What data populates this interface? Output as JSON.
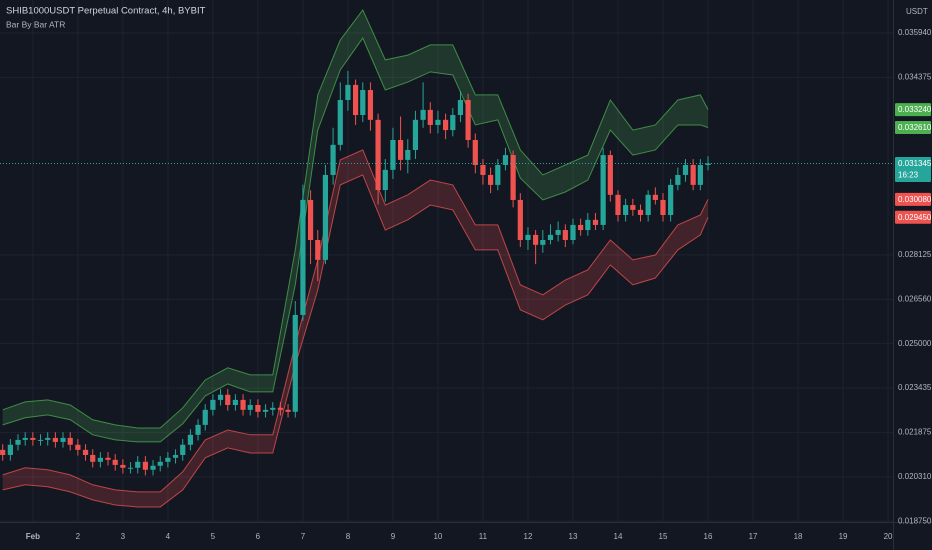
{
  "chart_data": {
    "type": "candlestick",
    "title": "SHIB1000USDT Perpetual Contract, 4h, BYBIT",
    "indicator": "Bar By Bar ATR",
    "currency": "USDT",
    "up_color": "#26a69a",
    "down_color": "#ef5350",
    "x": [
      0.33,
      0.5,
      0.67,
      0.83,
      1,
      1.17,
      1.33,
      1.5,
      1.67,
      1.83,
      2,
      2.17,
      2.33,
      2.5,
      2.67,
      2.83,
      3,
      3.17,
      3.33,
      3.5,
      3.67,
      3.83,
      4,
      4.17,
      4.33,
      4.5,
      4.67,
      4.83,
      5,
      5.17,
      5.33,
      5.5,
      5.67,
      5.83,
      6,
      6.17,
      6.33,
      6.5,
      6.67,
      6.83,
      7,
      7.17,
      7.33,
      7.5,
      7.67,
      7.83,
      8,
      8.17,
      8.33,
      8.5,
      8.67,
      8.83,
      9,
      9.17,
      9.33,
      9.5,
      9.67,
      9.83,
      10,
      10.17,
      10.33,
      10.5,
      10.67,
      10.83,
      11,
      11.17,
      11.33,
      11.5,
      11.67,
      11.83,
      12,
      12.17,
      12.33,
      12.5,
      12.67,
      12.83,
      13,
      13.17,
      13.33,
      13.5,
      13.67,
      13.83,
      14,
      14.17,
      14.33,
      14.5,
      14.67,
      14.83,
      15,
      15.17,
      15.33,
      15.5,
      15.67,
      15.83,
      16
    ],
    "open": [
      0.02126,
      0.02108,
      0.02144,
      0.02161,
      0.02168,
      0.02161,
      0.02161,
      0.02168,
      0.02154,
      0.02168,
      0.02144,
      0.02126,
      0.02108,
      0.02084,
      0.02098,
      0.02091,
      0.02073,
      0.02063,
      0.02063,
      0.02084,
      0.02056,
      0.0207,
      0.02084,
      0.02098,
      0.02108,
      0.02144,
      0.02179,
      0.02214,
      0.02267,
      0.02302,
      0.0232,
      0.02284,
      0.02302,
      0.02267,
      0.02284,
      0.0226,
      0.02267,
      0.02274,
      0.02267,
      0.0226,
      0.02601,
      0.03006,
      0.02865,
      0.02795,
      0.03094,
      0.032,
      0.03358,
      0.03411,
      0.03305,
      0.03393,
      0.03288,
      0.03041,
      0.03112,
      0.03217,
      0.03147,
      0.03182,
      0.03288,
      0.03323,
      0.0327,
      0.03288,
      0.03252,
      0.03305,
      0.03358,
      0.03217,
      0.03129,
      0.03094,
      0.03059,
      0.03129,
      0.03164,
      0.03006,
      0.02865,
      0.02883,
      0.02848,
      0.02865,
      0.02883,
      0.029,
      0.02865,
      0.02918,
      0.029,
      0.02936,
      0.02918,
      0.03164,
      0.03024,
      0.02953,
      0.02988,
      0.02971,
      0.02953,
      0.03024,
      0.03006,
      0.02953,
      0.03059,
      0.03094,
      0.03129,
      0.03059,
      0.03129
    ],
    "high": [
      0.02146,
      0.02164,
      0.02181,
      0.02188,
      0.02188,
      0.02181,
      0.02188,
      0.02188,
      0.02188,
      0.02188,
      0.02164,
      0.02146,
      0.02128,
      0.02118,
      0.02118,
      0.02111,
      0.02093,
      0.02083,
      0.02104,
      0.02104,
      0.0209,
      0.02104,
      0.02118,
      0.02128,
      0.02164,
      0.02199,
      0.02234,
      0.02287,
      0.02322,
      0.0234,
      0.0234,
      0.02322,
      0.02322,
      0.02304,
      0.02304,
      0.02287,
      0.02294,
      0.02294,
      0.02287,
      0.0265,
      0.0306,
      0.0304,
      0.029,
      0.0313,
      0.0326,
      0.0342,
      0.0346,
      0.0343,
      0.0342,
      0.0342,
      0.0331,
      0.0315,
      0.0326,
      0.033,
      0.0322,
      0.0332,
      0.0342,
      0.0335,
      0.0332,
      0.0331,
      0.0333,
      0.0339,
      0.0338,
      0.0324,
      0.0315,
      0.0312,
      0.0315,
      0.0319,
      0.0318,
      0.0303,
      0.0291,
      0.029,
      0.029,
      0.0292,
      0.0293,
      0.0292,
      0.0294,
      0.0294,
      0.0296,
      0.0296,
      0.0319,
      0.0318,
      0.0304,
      0.0301,
      0.0301,
      0.0299,
      0.0304,
      0.0305,
      0.0303,
      0.0308,
      0.0312,
      0.0315,
      0.0315,
      0.0315,
      0.0316
    ],
    "low": [
      0.02088,
      0.02088,
      0.02124,
      0.02141,
      0.02141,
      0.02141,
      0.02141,
      0.02134,
      0.02134,
      0.02124,
      0.02106,
      0.02088,
      0.02064,
      0.02064,
      0.02071,
      0.02053,
      0.02043,
      0.02043,
      0.02043,
      0.02036,
      0.02036,
      0.0205,
      0.02064,
      0.02078,
      0.02088,
      0.02124,
      0.02159,
      0.02194,
      0.02247,
      0.02282,
      0.02264,
      0.02264,
      0.02247,
      0.02247,
      0.0224,
      0.0224,
      0.02247,
      0.02247,
      0.0224,
      0.0224,
      0.0258,
      0.0278,
      0.0272,
      0.0278,
      0.0306,
      0.0318,
      0.0332,
      0.0327,
      0.0328,
      0.0325,
      0.0299,
      0.03,
      0.0308,
      0.0311,
      0.031,
      0.0315,
      0.0326,
      0.0324,
      0.0324,
      0.0322,
      0.0323,
      0.0328,
      0.0319,
      0.031,
      0.0306,
      0.0303,
      0.0304,
      0.0311,
      0.0298,
      0.0284,
      0.0283,
      0.0278,
      0.0282,
      0.0285,
      0.0286,
      0.0284,
      0.0285,
      0.0288,
      0.0288,
      0.029,
      0.029,
      0.03,
      0.0293,
      0.0293,
      0.0295,
      0.0293,
      0.0293,
      0.0299,
      0.0293,
      0.0293,
      0.0304,
      0.0307,
      0.0304,
      0.0304,
      0.0311
    ],
    "close": [
      0.02108,
      0.02144,
      0.02161,
      0.02168,
      0.02161,
      0.02161,
      0.02168,
      0.02154,
      0.02168,
      0.02144,
      0.02126,
      0.02108,
      0.02084,
      0.02098,
      0.02091,
      0.02073,
      0.02063,
      0.02063,
      0.02084,
      0.02056,
      0.0207,
      0.02084,
      0.02098,
      0.02108,
      0.02144,
      0.02179,
      0.02214,
      0.02267,
      0.02302,
      0.0232,
      0.02284,
      0.02302,
      0.02267,
      0.02284,
      0.0226,
      0.02267,
      0.02274,
      0.02267,
      0.0226,
      0.02601,
      0.03006,
      0.02865,
      0.02795,
      0.03094,
      0.032,
      0.03358,
      0.03411,
      0.03305,
      0.03393,
      0.03288,
      0.03041,
      0.03112,
      0.03217,
      0.03147,
      0.03182,
      0.03288,
      0.03323,
      0.0327,
      0.03288,
      0.03252,
      0.03305,
      0.03358,
      0.03217,
      0.03129,
      0.03094,
      0.03059,
      0.03129,
      0.03164,
      0.03006,
      0.02865,
      0.02883,
      0.02848,
      0.02865,
      0.02883,
      0.029,
      0.02865,
      0.02918,
      0.029,
      0.02936,
      0.02918,
      0.03164,
      0.03024,
      0.02953,
      0.02988,
      0.02971,
      0.02953,
      0.03024,
      0.03006,
      0.02953,
      0.03059,
      0.03094,
      0.03129,
      0.03059,
      0.03129,
      0.031345
    ],
    "bands": {
      "x": [
        0.33,
        0.83,
        1.33,
        1.83,
        2.33,
        2.83,
        3.33,
        3.83,
        4.33,
        4.83,
        5.33,
        5.83,
        6.33,
        6.83,
        7.33,
        7.83,
        8.33,
        8.83,
        9.33,
        9.83,
        10.33,
        10.83,
        11.33,
        11.83,
        12.33,
        12.83,
        13.33,
        13.83,
        14.33,
        14.83,
        15.33,
        15.83,
        16
      ],
      "upper": {
        "color": "#4caf50",
        "top": [
          0.02267,
          0.02295,
          0.02302,
          0.02284,
          0.02232,
          0.02214,
          0.02203,
          0.02203,
          0.02274,
          0.02372,
          0.02415,
          0.0239,
          0.0239,
          0.0283,
          0.03376,
          0.03569,
          0.03675,
          0.03499,
          0.03516,
          0.03552,
          0.03552,
          0.03376,
          0.03376,
          0.03182,
          0.03094,
          0.03129,
          0.03164,
          0.03358,
          0.03252,
          0.0327,
          0.03358,
          0.03376,
          0.03324
        ],
        "bottom": [
          0.02214,
          0.02239,
          0.02249,
          0.02232,
          0.02179,
          0.02161,
          0.02154,
          0.02154,
          0.02218,
          0.02316,
          0.02358,
          0.0233,
          0.0233,
          0.02707,
          0.03252,
          0.03464,
          0.03576,
          0.03393,
          0.03421,
          0.03457,
          0.03446,
          0.0327,
          0.03288,
          0.03083,
          0.03006,
          0.03034,
          0.03076,
          0.03252,
          0.03164,
          0.03182,
          0.0327,
          0.0327,
          0.03261
        ]
      },
      "lower": {
        "color": "#ef5350",
        "top": [
          0.02038,
          0.02063,
          0.02056,
          0.02038,
          0.02003,
          0.01985,
          0.01978,
          0.01978,
          0.02049,
          0.02161,
          0.02196,
          0.02179,
          0.02179,
          0.02496,
          0.02795,
          0.03147,
          0.03182,
          0.02988,
          0.03024,
          0.03076,
          0.03059,
          0.02918,
          0.02918,
          0.02707,
          0.02672,
          0.02724,
          0.0276,
          0.02865,
          0.02795,
          0.02812,
          0.02918,
          0.02953,
          0.03008
        ],
        "bottom": [
          0.01985,
          0.02003,
          0.01996,
          0.01978,
          0.0195,
          0.01932,
          0.01925,
          0.01925,
          0.01985,
          0.02098,
          0.02133,
          0.02115,
          0.02115,
          0.02425,
          0.02689,
          0.03059,
          0.03094,
          0.029,
          0.02936,
          0.02988,
          0.02971,
          0.0283,
          0.0283,
          0.02619,
          0.02584,
          0.02636,
          0.02672,
          0.02777,
          0.02707,
          0.02731,
          0.0283,
          0.02883,
          0.02945
        ]
      }
    },
    "last_price": {
      "value": 0.031345,
      "label": "0.031345",
      "countdown": "16:23",
      "color": "#26a69a"
    },
    "price_labels": [
      {
        "value": 0.03324,
        "label": "0.033240",
        "color": "#4caf50"
      },
      {
        "value": 0.03261,
        "label": "0.032610",
        "color": "#4caf50"
      },
      {
        "value": 0.03008,
        "label": "0.030080",
        "color": "#ef5350"
      },
      {
        "value": 0.02945,
        "label": "0.029450",
        "color": "#ef5350"
      }
    ],
    "xlim": [
      0.27,
      20.11
    ],
    "ylim": [
      0.01872,
      0.0371
    ],
    "xticks": [
      {
        "value": 1,
        "label": "Feb"
      },
      2,
      3,
      4,
      5,
      6,
      7,
      8,
      9,
      10,
      11,
      12,
      13,
      14,
      15,
      16,
      17,
      18,
      19,
      20
    ],
    "yticks": [
      {
        "value": 0.03594,
        "label": "0.035940"
      },
      0.034375,
      0.028125,
      {
        "value": 0.02656,
        "label": "0.026560"
      },
      {
        "value": 0.025,
        "label": "0.025000"
      },
      0.023435,
      0.021875,
      {
        "value": 0.02031,
        "label": "0.020310"
      },
      {
        "value": 0.01875,
        "label": "0.018750"
      }
    ],
    "grid": true
  }
}
